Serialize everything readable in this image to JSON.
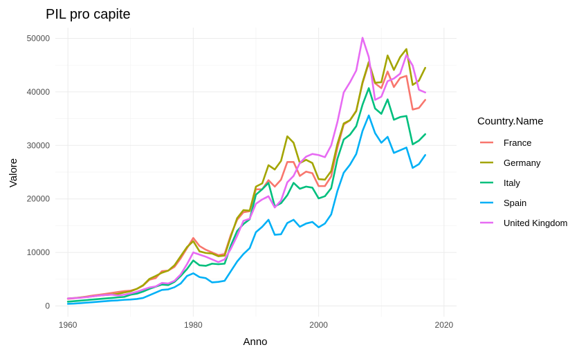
{
  "chart_data": {
    "type": "line",
    "title": "PIL pro capite",
    "xlabel": "Anno",
    "ylabel": "Valore",
    "xlim": [
      1958,
      2022
    ],
    "ylim": [
      -2000,
      52000
    ],
    "x_ticks": [
      1960,
      1980,
      2000,
      2020
    ],
    "x_tick_labels": [
      "1960",
      "1980",
      "2000",
      "2020"
    ],
    "y_ticks": [
      0,
      10000,
      20000,
      30000,
      40000,
      50000
    ],
    "y_tick_labels": [
      "0",
      "10000",
      "20000",
      "30000",
      "40000",
      "50000"
    ],
    "grid": true,
    "legend_title": "Country.Name",
    "legend_position": "right",
    "x": [
      1960,
      1961,
      1962,
      1963,
      1964,
      1965,
      1966,
      1967,
      1968,
      1969,
      1970,
      1971,
      1972,
      1973,
      1974,
      1975,
      1976,
      1977,
      1978,
      1979,
      1980,
      1981,
      1982,
      1983,
      1984,
      1985,
      1986,
      1987,
      1988,
      1989,
      1990,
      1991,
      1992,
      1993,
      1994,
      1995,
      1996,
      1997,
      1998,
      1999,
      2000,
      2001,
      2002,
      2003,
      2004,
      2005,
      2006,
      2007,
      2008,
      2009,
      2010,
      2011,
      2012,
      2013,
      2014,
      2015,
      2016,
      2017
    ],
    "series": [
      {
        "name": "France",
        "color": "#f8766d",
        "values": [
          1340,
          1430,
          1590,
          1760,
          1950,
          2090,
          2250,
          2430,
          2620,
          2780,
          2860,
          3180,
          3800,
          4900,
          5200,
          6500,
          6600,
          7300,
          8900,
          10800,
          12700,
          11200,
          10500,
          10000,
          9500,
          9700,
          13300,
          16100,
          17500,
          17700,
          21800,
          21800,
          23500,
          22300,
          23600,
          26900,
          26900,
          24300,
          25100,
          24800,
          22400,
          22400,
          24200,
          29600,
          33900,
          34700,
          36500,
          41600,
          45400,
          41600,
          40700,
          43800,
          40900,
          42600,
          43000,
          36700,
          37000,
          38500
        ]
      },
      {
        "name": "Germany",
        "color": "#a3a500",
        "values": [
          1400,
          1480,
          1580,
          1670,
          1800,
          1950,
          2050,
          2120,
          2270,
          2520,
          2750,
          3200,
          3870,
          5050,
          5600,
          6200,
          6600,
          7600,
          9300,
          11000,
          12100,
          10200,
          9900,
          9800,
          9300,
          9400,
          13000,
          16400,
          17900,
          17800,
          22300,
          22900,
          26300,
          25500,
          27100,
          31700,
          30500,
          26700,
          27300,
          26700,
          23700,
          23600,
          25200,
          30300,
          34100,
          34700,
          36400,
          41800,
          45600,
          41700,
          41800,
          46800,
          44100,
          46500,
          48000,
          41300,
          42100,
          44500
        ]
      },
      {
        "name": "Italy",
        "color": "#00bf7d",
        "values": [
          800,
          900,
          1000,
          1100,
          1200,
          1300,
          1400,
          1500,
          1600,
          1700,
          2100,
          2300,
          2700,
          3200,
          3600,
          4000,
          3900,
          4500,
          5600,
          6900,
          8500,
          7600,
          7500,
          7900,
          7800,
          7900,
          11300,
          14000,
          15300,
          16200,
          20800,
          21800,
          23000,
          18600,
          19200,
          20700,
          23000,
          21900,
          22300,
          22100,
          20100,
          20500,
          22000,
          27500,
          31100,
          32000,
          33600,
          37600,
          40700,
          36900,
          35900,
          38600,
          34800,
          35300,
          35500,
          30200,
          30900,
          32100
        ]
      },
      {
        "name": "Spain",
        "color": "#00b0f6",
        "values": [
          400,
          450,
          530,
          620,
          700,
          800,
          900,
          1000,
          1050,
          1150,
          1200,
          1300,
          1500,
          2000,
          2500,
          3000,
          3100,
          3500,
          4200,
          5600,
          6100,
          5400,
          5200,
          4400,
          4500,
          4700,
          6500,
          8300,
          9700,
          10800,
          13800,
          14800,
          16100,
          13300,
          13400,
          15500,
          16100,
          14800,
          15400,
          15700,
          14700,
          15400,
          17100,
          21500,
          24900,
          26400,
          28400,
          32700,
          35600,
          32300,
          30500,
          31600,
          28600,
          29100,
          29600,
          25800,
          26500,
          28200
        ]
      },
      {
        "name": "United Kingdom",
        "color": "#e76bf3",
        "values": [
          1400,
          1470,
          1530,
          1650,
          1800,
          1950,
          2050,
          2100,
          1950,
          2100,
          2350,
          2650,
          3050,
          3450,
          3650,
          4300,
          4200,
          4700,
          5900,
          7800,
          10000,
          9600,
          9200,
          8700,
          8200,
          8700,
          10700,
          13100,
          15900,
          16300,
          19100,
          19900,
          20500,
          18400,
          19700,
          23100,
          24300,
          26700,
          27900,
          28400,
          28200,
          27800,
          30000,
          34400,
          39900,
          41800,
          44000,
          50100,
          46500,
          38500,
          39100,
          42000,
          42500,
          43400,
          46900,
          44900,
          40400,
          39900
        ]
      }
    ]
  }
}
